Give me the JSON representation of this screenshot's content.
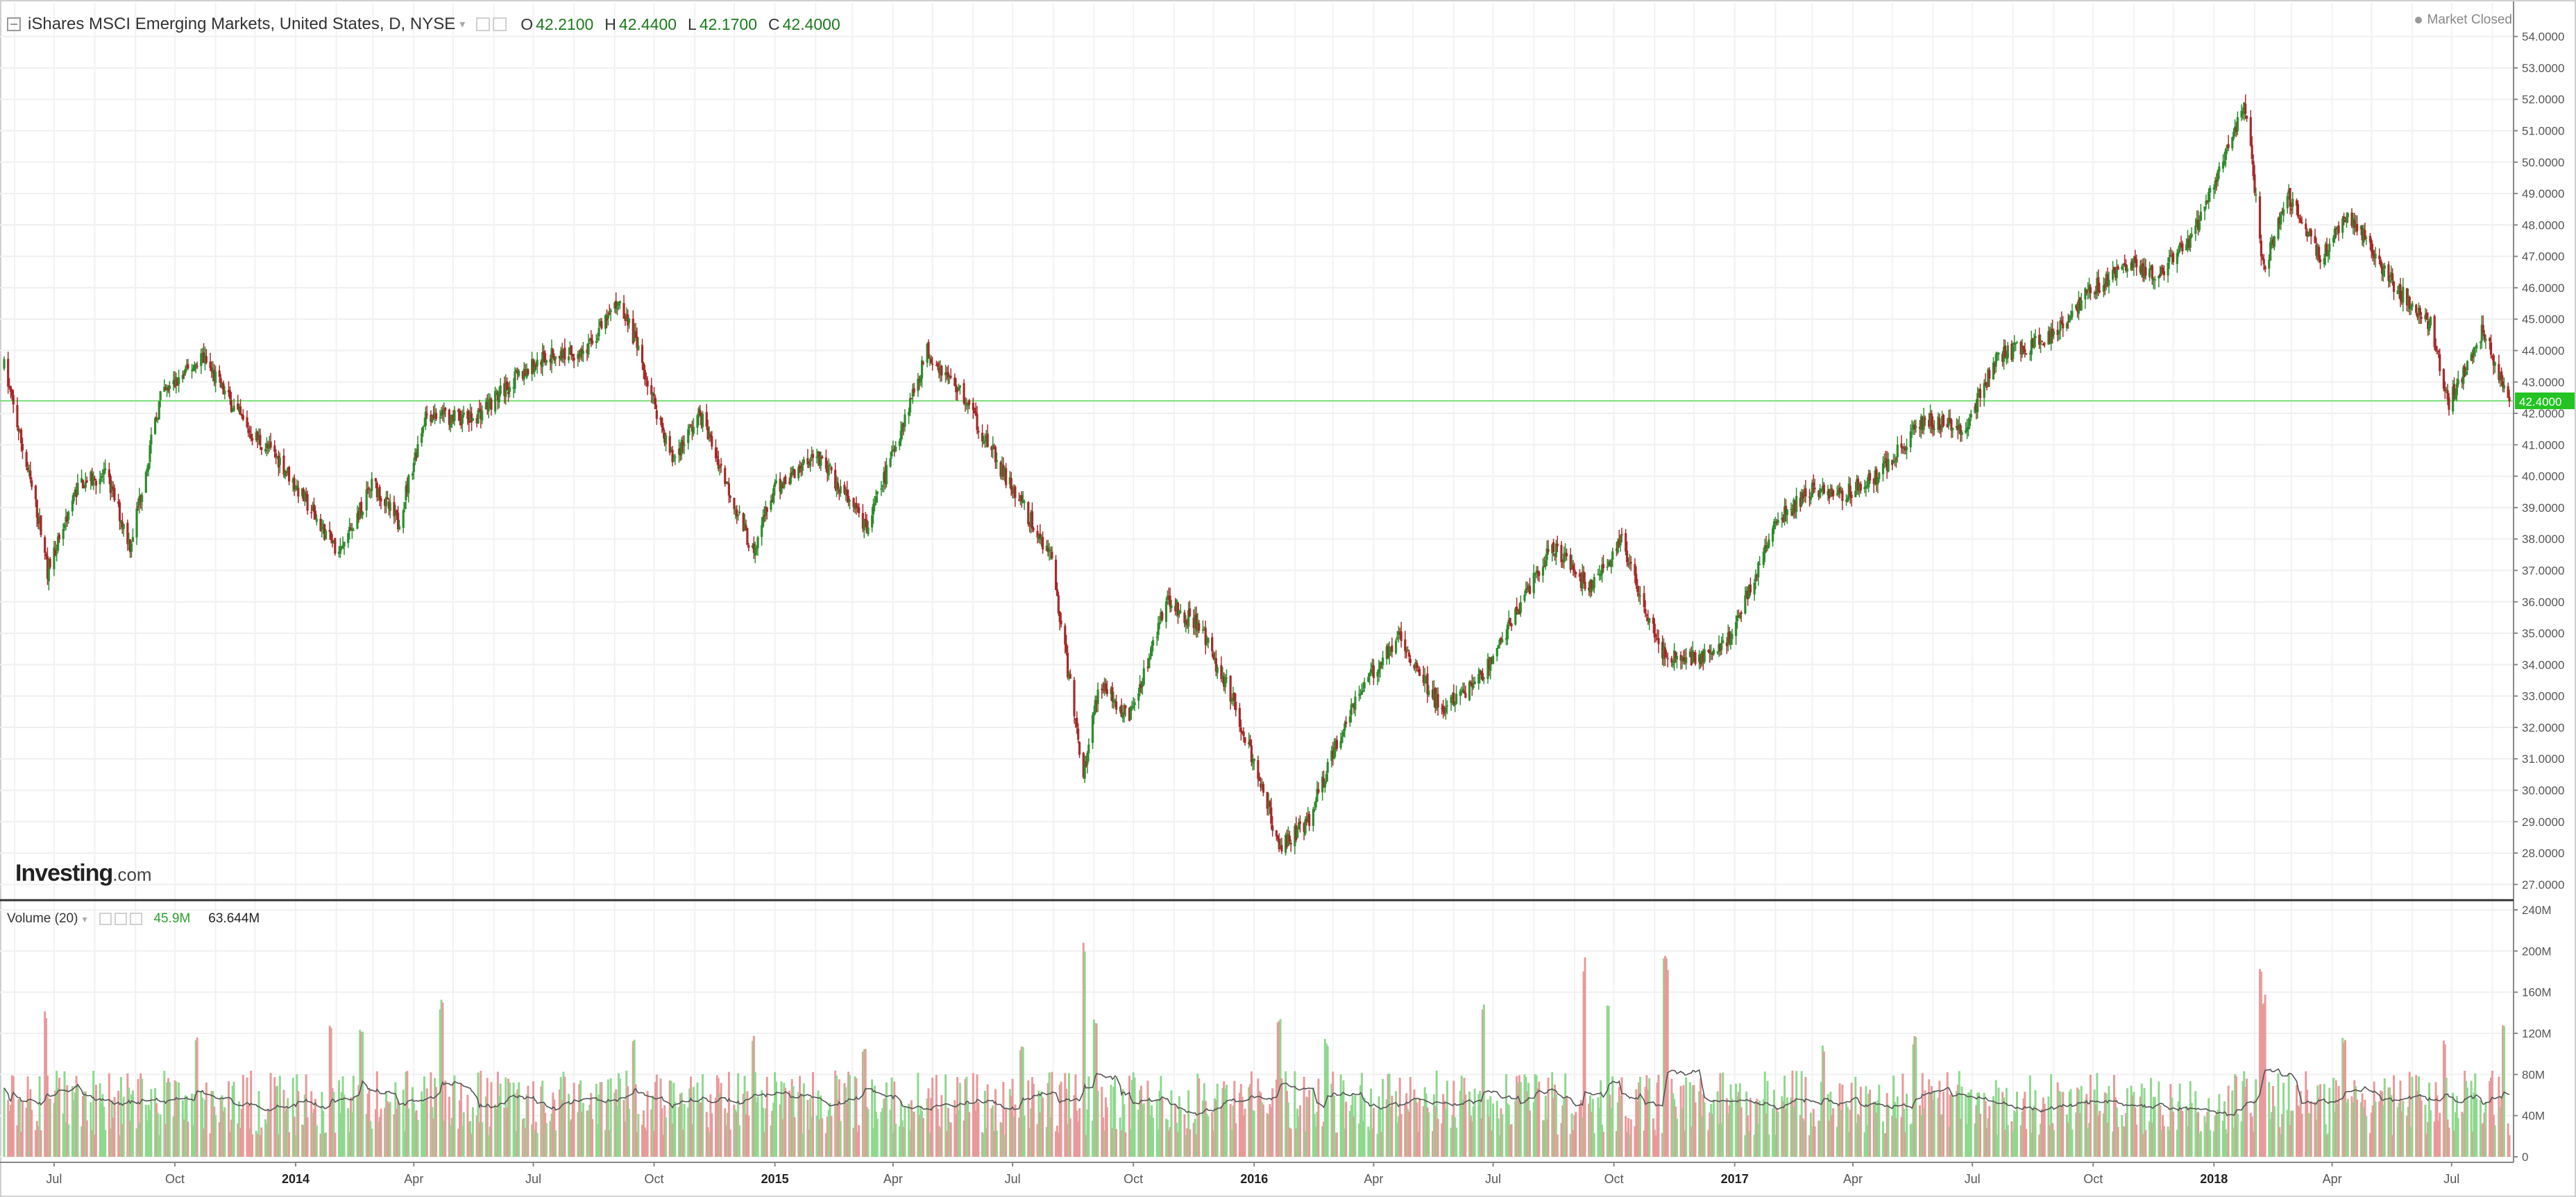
{
  "header": {
    "instrument": "iShares MSCI Emerging Markets, United States, D, NYSE",
    "open_label": "O",
    "open": "42.2100",
    "high_label": "H",
    "high": "42.4400",
    "low_label": "L",
    "low": "42.1700",
    "close_label": "C",
    "close": "42.4000"
  },
  "market_status": "Market Closed",
  "logo": {
    "brand": "Investing",
    "suffix": ".com"
  },
  "volume_header": {
    "label": "Volume (20)",
    "current": "45.9M",
    "average": "63.644M"
  },
  "last_price_tag": "42.4000",
  "colors": {
    "up": "#2e8b2e",
    "down": "#a52a2a",
    "vol_up": "#8fd88f",
    "vol_down": "#e89a9a",
    "price_line": "#7fe07f",
    "tag": "#22c322"
  },
  "chart_data": [
    {
      "type": "candlestick",
      "title": "iShares MSCI Emerging Markets, United States, D, NYSE",
      "ylim": [
        26.5,
        54.5
      ],
      "y_ticks": [
        "27.0000",
        "28.0000",
        "29.0000",
        "30.0000",
        "31.0000",
        "32.0000",
        "33.0000",
        "34.0000",
        "35.0000",
        "36.0000",
        "37.0000",
        "38.0000",
        "39.0000",
        "40.0000",
        "41.0000",
        "42.0000",
        "43.0000",
        "44.0000",
        "45.0000",
        "46.0000",
        "47.0000",
        "48.0000",
        "49.0000",
        "50.0000",
        "51.0000",
        "52.0000",
        "53.0000",
        "54.0000"
      ],
      "x_ticks": [
        "Jul",
        "Oct",
        "2014",
        "Apr",
        "Jul",
        "Oct",
        "2015",
        "Apr",
        "Jul",
        "Oct",
        "2016",
        "Apr",
        "Jul",
        "Oct",
        "2017",
        "Apr",
        "Jul",
        "Oct",
        "2018",
        "Apr",
        "Jul"
      ],
      "x_range": [
        "2013-05-24",
        "2018-08-14"
      ],
      "last_close": 42.4,
      "price_path": [
        [
          "2013-05-24",
          43.5
        ],
        [
          "2013-06-20",
          38.5
        ],
        [
          "2013-06-26",
          37.0
        ],
        [
          "2013-07-20",
          39.8
        ],
        [
          "2013-08-10",
          40.0
        ],
        [
          "2013-08-28",
          37.8
        ],
        [
          "2013-09-20",
          42.5
        ],
        [
          "2013-10-22",
          43.8
        ],
        [
          "2013-11-25",
          41.5
        ],
        [
          "2013-12-20",
          40.5
        ],
        [
          "2014-02-03",
          37.5
        ],
        [
          "2014-03-01",
          39.8
        ],
        [
          "2014-03-20",
          38.5
        ],
        [
          "2014-04-10",
          42.0
        ],
        [
          "2014-05-15",
          41.8
        ],
        [
          "2014-06-20",
          43.2
        ],
        [
          "2014-07-10",
          43.8
        ],
        [
          "2014-08-10",
          44.0
        ],
        [
          "2014-09-05",
          45.6
        ],
        [
          "2014-09-15",
          44.5
        ],
        [
          "2014-10-15",
          40.5
        ],
        [
          "2014-11-05",
          42.0
        ],
        [
          "2014-12-15",
          37.6
        ],
        [
          "2014-12-31",
          39.5
        ],
        [
          "2015-02-01",
          40.8
        ],
        [
          "2015-03-12",
          38.3
        ],
        [
          "2015-04-27",
          44.0
        ],
        [
          "2015-05-25",
          42.5
        ],
        [
          "2015-06-25",
          40.0
        ],
        [
          "2015-07-30",
          37.5
        ],
        [
          "2015-08-24",
          30.5
        ],
        [
          "2015-09-05",
          33.5
        ],
        [
          "2015-09-28",
          32.3
        ],
        [
          "2015-10-26",
          36.1
        ],
        [
          "2015-11-20",
          35.2
        ],
        [
          "2015-12-15",
          33.0
        ],
        [
          "2016-01-21",
          28.2
        ],
        [
          "2016-02-11",
          29.0
        ],
        [
          "2016-03-15",
          32.7
        ],
        [
          "2016-04-20",
          35.0
        ],
        [
          "2016-05-23",
          32.5
        ],
        [
          "2016-06-24",
          33.7
        ],
        [
          "2016-07-20",
          35.8
        ],
        [
          "2016-08-15",
          37.8
        ],
        [
          "2016-09-12",
          36.4
        ],
        [
          "2016-10-07",
          37.9
        ],
        [
          "2016-11-09",
          34.2
        ],
        [
          "2016-12-15",
          34.3
        ],
        [
          "2016-12-30",
          35.0
        ],
        [
          "2017-02-01",
          38.5
        ],
        [
          "2017-03-01",
          39.6
        ],
        [
          "2017-03-20",
          39.3
        ],
        [
          "2017-04-20",
          40.0
        ],
        [
          "2017-05-25",
          41.8
        ],
        [
          "2017-06-25",
          41.5
        ],
        [
          "2017-07-20",
          43.8
        ],
        [
          "2017-08-25",
          44.3
        ],
        [
          "2017-10-01",
          46.0
        ],
        [
          "2017-10-30",
          46.8
        ],
        [
          "2017-11-20",
          46.3
        ],
        [
          "2017-12-15",
          47.6
        ],
        [
          "2018-01-25",
          51.8
        ],
        [
          "2018-02-08",
          46.5
        ],
        [
          "2018-02-26",
          49.0
        ],
        [
          "2018-03-23",
          47.0
        ],
        [
          "2018-04-15",
          48.3
        ],
        [
          "2018-05-20",
          46.0
        ],
        [
          "2018-06-15",
          44.8
        ],
        [
          "2018-06-29",
          42.3
        ],
        [
          "2018-07-25",
          44.7
        ],
        [
          "2018-08-14",
          42.4
        ]
      ]
    },
    {
      "type": "bar",
      "title": "Volume (20)",
      "ylim": [
        0,
        240
      ],
      "y_ticks": [
        "0",
        "40M",
        "80M",
        "120M",
        "160M",
        "200M",
        "240M"
      ],
      "unit": "M shares",
      "baseline_avg": 60,
      "volume_peaks": [
        [
          "2013-06-24",
          145
        ],
        [
          "2013-10-18",
          120
        ],
        [
          "2014-01-27",
          130
        ],
        [
          "2014-02-20",
          125
        ],
        [
          "2014-04-22",
          155
        ],
        [
          "2014-09-15",
          115
        ],
        [
          "2014-12-15",
          120
        ],
        [
          "2015-03-10",
          105
        ],
        [
          "2015-07-08",
          110
        ],
        [
          "2015-08-24",
          215
        ],
        [
          "2015-09-02",
          140
        ],
        [
          "2016-01-20",
          135
        ],
        [
          "2016-02-25",
          115
        ],
        [
          "2016-06-24",
          155
        ],
        [
          "2016-09-09",
          195
        ],
        [
          "2016-09-26",
          150
        ],
        [
          "2016-11-09",
          205
        ],
        [
          "2016-11-11",
          190
        ],
        [
          "2017-03-10",
          110
        ],
        [
          "2017-05-18",
          118
        ],
        [
          "2018-02-05",
          185
        ],
        [
          "2018-02-08",
          160
        ],
        [
          "2018-04-10",
          120
        ],
        [
          "2018-06-25",
          118
        ],
        [
          "2018-08-10",
          135
        ]
      ]
    }
  ]
}
